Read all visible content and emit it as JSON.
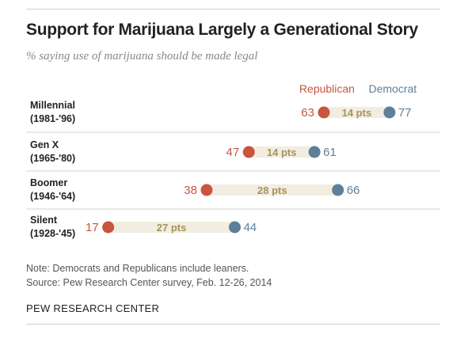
{
  "title": "Support for Marijuana Largely a Generational Story",
  "subtitle": "% saying use of marijuana should be made legal",
  "note": "Note: Democrats and Republicans include leaners.",
  "source": "Source: Pew Research Center survey, Feb. 12-26, 2014",
  "org": "PEW RESEARCH CENTER",
  "chart_data": {
    "type": "dot",
    "xlim": [
      0,
      100
    ],
    "series": [
      {
        "name": "Republican",
        "color": "#c8553d",
        "values": [
          63,
          47,
          38,
          17
        ]
      },
      {
        "name": "Democrat",
        "color": "#5e7f99",
        "values": [
          77,
          61,
          66,
          44
        ]
      }
    ],
    "categories": [
      {
        "name": "Millennial",
        "years": "(1981-'96)",
        "gap": "14 pts"
      },
      {
        "name": "Gen X",
        "years": "(1965-'80)",
        "gap": "14 pts"
      },
      {
        "name": "Boomer",
        "years": "(1946-'64)",
        "gap": "28 pts"
      },
      {
        "name": "Silent",
        "years": "(1928-'45)",
        "gap": "27 pts"
      }
    ],
    "bar_color": "#f1ede0",
    "gap_label_color": "#a8925a"
  }
}
